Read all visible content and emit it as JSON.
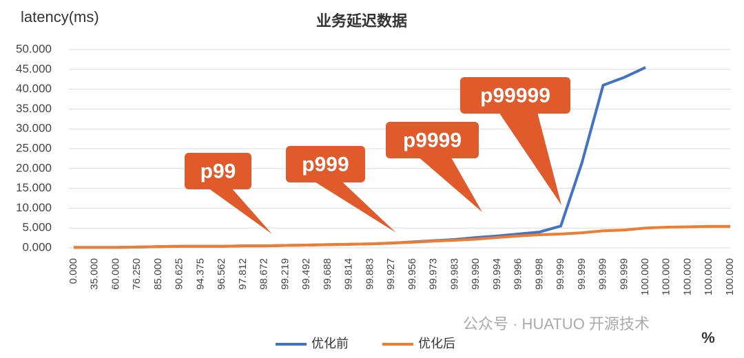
{
  "chart_data": {
    "type": "line",
    "title": "业务延迟数据",
    "y_label": "latency(ms)",
    "x_label": "%",
    "watermark": "公众号 · HUATUO 开源技术",
    "categories": [
      "0.000",
      "35.000",
      "60.000",
      "76.250",
      "85.000",
      "90.625",
      "94.375",
      "96.562",
      "97.812",
      "98.672",
      "99.219",
      "99.492",
      "99.688",
      "99.814",
      "99.883",
      "99.927",
      "99.956",
      "99.973",
      "99.983",
      "99.990",
      "99.994",
      "99.996",
      "99.998",
      "99.999",
      "99.999",
      "99.999",
      "99.999",
      "100.000",
      "100.000",
      "100.000",
      "100.000",
      "100.000"
    ],
    "series": [
      {
        "name": "优化前",
        "color": "#4472c4",
        "values": [
          0.1,
          0.1,
          0.1,
          0.2,
          0.3,
          0.4,
          0.4,
          0.4,
          0.5,
          0.5,
          0.6,
          0.7,
          0.8,
          0.9,
          1.0,
          1.2,
          1.5,
          1.8,
          2.1,
          2.6,
          3.0,
          3.5,
          4.0,
          5.5,
          21.5,
          41.0,
          43.0,
          45.5,
          null,
          null,
          null,
          null
        ]
      },
      {
        "name": "优化后",
        "color": "#ed7d31",
        "values": [
          0.1,
          0.1,
          0.1,
          0.2,
          0.3,
          0.4,
          0.4,
          0.4,
          0.5,
          0.5,
          0.6,
          0.7,
          0.8,
          0.9,
          1.0,
          1.2,
          1.4,
          1.7,
          1.9,
          2.2,
          2.6,
          3.0,
          3.3,
          3.5,
          3.8,
          4.3,
          4.5,
          5.0,
          5.2,
          5.3,
          5.4,
          5.4
        ]
      }
    ],
    "annotations": [
      "p99",
      "p999",
      "p9999",
      "p99999"
    ],
    "ylim": [
      0,
      50
    ],
    "yticks": [
      {
        "value": 0,
        "label": "0.000"
      },
      {
        "value": 5,
        "label": "5.000"
      },
      {
        "value": 10,
        "label": "10.000"
      },
      {
        "value": 15,
        "label": "15.000"
      },
      {
        "value": 20,
        "label": "20.000"
      },
      {
        "value": 25,
        "label": "25.000"
      },
      {
        "value": 30,
        "label": "30.000"
      },
      {
        "value": 35,
        "label": "35.000"
      },
      {
        "value": 40,
        "label": "40.000"
      },
      {
        "value": 45,
        "label": "45.000"
      },
      {
        "value": 50,
        "label": "50.000"
      }
    ],
    "grid": true
  }
}
